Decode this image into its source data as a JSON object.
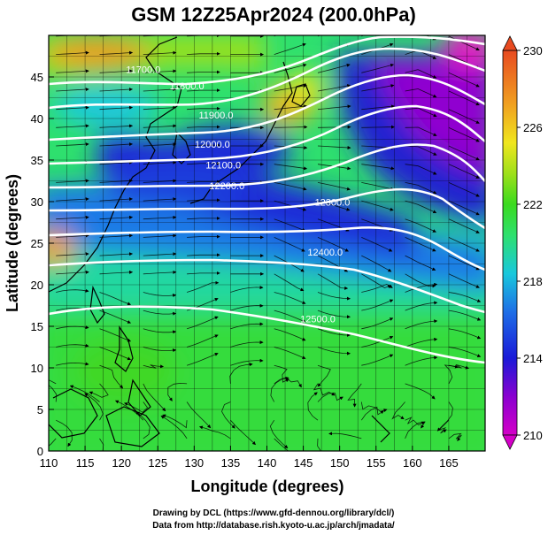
{
  "title": "GSM 12Z25Apr2024 (200.0hPa)",
  "axes": {
    "xlabel": "Longitude (degrees)",
    "ylabel": "Latitude (degrees)",
    "xlim": [
      110,
      170
    ],
    "ylim": [
      0,
      50
    ],
    "xticks": [
      110,
      115,
      120,
      125,
      130,
      135,
      140,
      145,
      150,
      155,
      160,
      165
    ],
    "yticks": [
      0,
      5,
      10,
      15,
      20,
      25,
      30,
      35,
      40,
      45
    ],
    "grid": true
  },
  "colorbar": {
    "min": 210,
    "max": 230,
    "ticks": [
      210,
      214,
      218,
      222,
      226,
      230
    ],
    "colors": [
      "#d400c8",
      "#8a00d0",
      "#1a1ad8",
      "#1e6ee6",
      "#19c8dc",
      "#2ee06e",
      "#3ada1e",
      "#9ee01a",
      "#f0e61e",
      "#f0a020",
      "#e84a20"
    ]
  },
  "contour_labels": [
    {
      "text": "11700.0",
      "lon": 123,
      "lat": 45.5
    },
    {
      "text": "11800.0",
      "lon": 129,
      "lat": 43.5
    },
    {
      "text": "11900.0",
      "lon": 133,
      "lat": 40
    },
    {
      "text": "12000.0",
      "lon": 132.5,
      "lat": 36.5
    },
    {
      "text": "12100.0",
      "lon": 134,
      "lat": 34
    },
    {
      "text": "12200.0",
      "lon": 134.5,
      "lat": 31.5
    },
    {
      "text": "12300.0",
      "lon": 149,
      "lat": 29.5
    },
    {
      "text": "12400.0",
      "lon": 148,
      "lat": 23.5
    },
    {
      "text": "12500.0",
      "lon": 147,
      "lat": 15.5
    }
  ],
  "credits": {
    "line1": "Drawing by DCL (https://www.gfd-dennou.org/library/dcl/)",
    "line2": "Data from http://database.rish.kyoto-u.ac.jp/arch/jmadata/"
  }
}
